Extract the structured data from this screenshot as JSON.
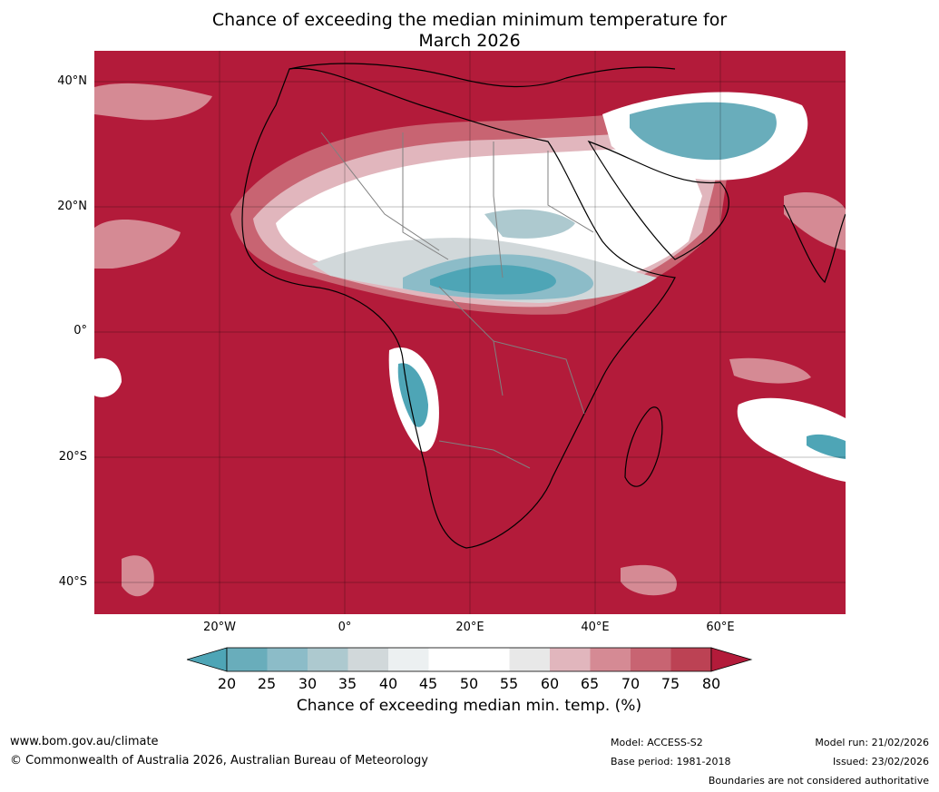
{
  "title": {
    "line1": "Chance of exceeding the median minimum temperature for",
    "line2": "March 2026"
  },
  "axes": {
    "y_ticks": [
      "40°N",
      "20°N",
      "0°",
      "20°S",
      "40°S"
    ],
    "x_ticks": [
      "20°W",
      "0°",
      "20°E",
      "40°E",
      "60°E"
    ]
  },
  "colorbar": {
    "labels": [
      "20",
      "25",
      "30",
      "35",
      "40",
      "45",
      "50",
      "55",
      "60",
      "65",
      "70",
      "75",
      "80"
    ],
    "colors": [
      "#4ea5b6",
      "#69adbb",
      "#8cbcc8",
      "#adc9cf",
      "#d1d8da",
      "#ecf0f1",
      "#ffffff",
      "#ffffff",
      "#e8e8e8",
      "#e1b6bd",
      "#d58a94",
      "#c86472",
      "#bc4254",
      "#b31b3a"
    ],
    "title": "Chance of exceeding median min. temp. (%)"
  },
  "colors": {
    "high": "#b31b3a",
    "mid_high": "#c86472",
    "low": "#4ea5b6",
    "neutral": "#ffffff",
    "border": "#808080",
    "coast": "#000000"
  },
  "footer": {
    "website": "www.bom.gov.au/climate",
    "copyright": "© Commonwealth of Australia 2026, Australian Bureau of Meteorology",
    "model": "Model: ACCESS-S2",
    "base_period": "Base period: 1981-2018",
    "model_run": "Model run: 21/02/2026",
    "issued": "Issued: 23/02/2026",
    "disclaimer": "Boundaries are not considered authoritative"
  }
}
